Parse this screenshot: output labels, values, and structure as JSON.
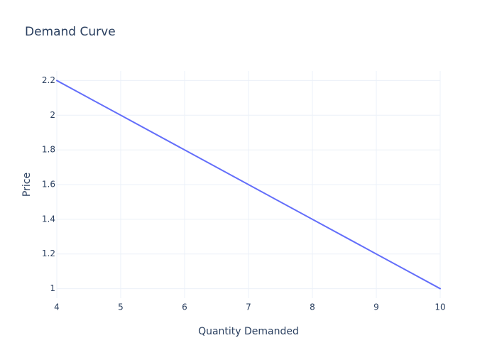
{
  "chart_data": {
    "type": "line",
    "title": "Demand Curve",
    "xlabel": "Quantity Demanded",
    "ylabel": "Price",
    "xlim": [
      4,
      10
    ],
    "ylim": [
      0.945,
      2.255
    ],
    "x_ticks": [
      4,
      5,
      6,
      7,
      8,
      9,
      10
    ],
    "y_ticks": [
      1,
      1.2,
      1.4,
      1.6,
      1.8,
      2,
      2.2
    ],
    "grid": true,
    "legend": "none",
    "series": [
      {
        "x": [
          4,
          5,
          6,
          7,
          8,
          9,
          10
        ],
        "y": [
          2.2,
          2.0,
          1.8,
          1.6,
          1.4,
          1.2,
          1.0
        ],
        "color": "#636efa"
      }
    ]
  }
}
